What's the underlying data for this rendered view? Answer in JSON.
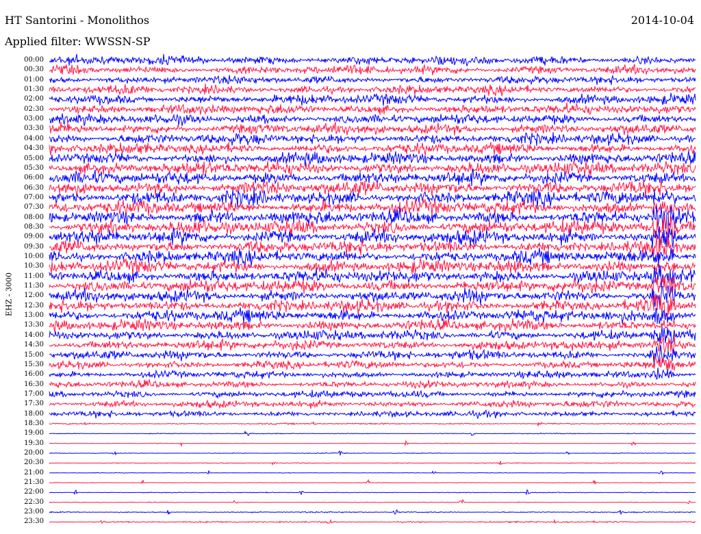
{
  "header": {
    "title": "HT Santorini - Monolithos",
    "date": "2014-10-04",
    "filter": "Applied filter: WWSSN-SP",
    "channel": "EHZ - 3000"
  },
  "chart_data": {
    "type": "line",
    "title": "HT Santorini - Monolithos",
    "xlabel": "",
    "ylabel": "EHZ - 3000",
    "grid": false,
    "series_colors": [
      "#0000ff",
      "#ff1744"
    ],
    "trace_labels": [
      "00:00",
      "00:30",
      "01:00",
      "01:30",
      "02:00",
      "02:30",
      "03:00",
      "03:30",
      "04:00",
      "04:30",
      "05:00",
      "05:30",
      "06:00",
      "06:30",
      "07:00",
      "07:30",
      "08:00",
      "08:30",
      "09:00",
      "09:30",
      "10:00",
      "10:30",
      "11:00",
      "11:30",
      "12:00",
      "12:30",
      "13:00",
      "13:30",
      "14:00",
      "14:30",
      "15:00",
      "15:30",
      "16:00",
      "16:30",
      "17:00",
      "17:30",
      "18:00",
      "18:30",
      "19:00",
      "19:30",
      "20:00",
      "20:30",
      "21:00",
      "21:30",
      "22:00",
      "22:30",
      "23:00",
      "23:30"
    ],
    "relative_noise_level": [
      0.9,
      0.9,
      0.8,
      0.9,
      1.0,
      1.0,
      1.0,
      1.1,
      1.1,
      1.1,
      1.2,
      1.3,
      1.3,
      1.4,
      1.4,
      1.4,
      1.4,
      1.4,
      1.4,
      1.3,
      1.3,
      1.3,
      1.3,
      1.3,
      1.2,
      1.2,
      1.2,
      1.1,
      1.0,
      1.0,
      0.9,
      0.8,
      0.7,
      0.7,
      0.7,
      0.7,
      0.6,
      0.15,
      0.08,
      0.06,
      0.07,
      0.08,
      0.06,
      0.06,
      0.08,
      0.07,
      0.12,
      0.15
    ]
  }
}
